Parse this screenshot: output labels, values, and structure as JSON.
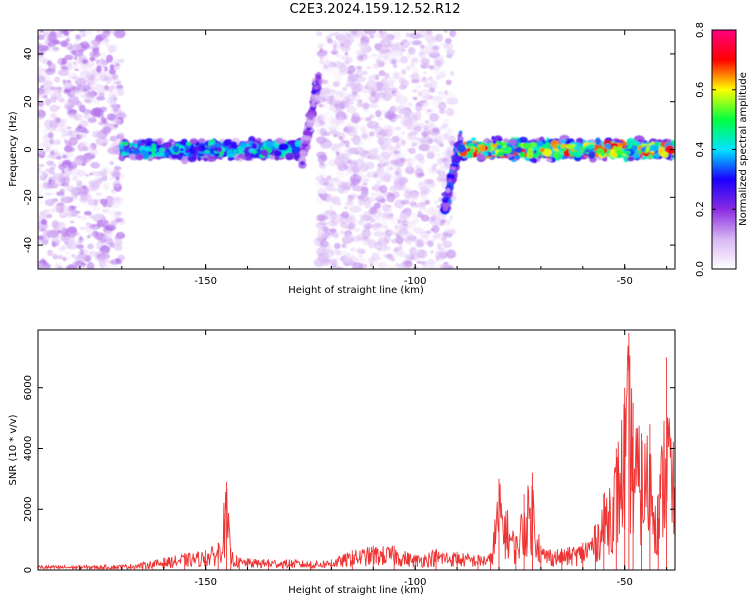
{
  "figure": {
    "title": "C2E3.2024.159.12.52.R12"
  },
  "chart_data": [
    {
      "type": "heatmap",
      "xlabel": "Height of straight line (km)",
      "ylabel": "Frequency (Hz)",
      "xlim": [
        -190,
        -38
      ],
      "ylim": [
        -50,
        50
      ],
      "xticks": [
        -150,
        -100,
        -50
      ],
      "yticks": [
        -40,
        -20,
        0,
        20,
        40
      ],
      "xtick_labels": [
        "-150",
        "-100",
        "-50"
      ],
      "ytick_labels": [
        "-40",
        "-20",
        "0",
        "20",
        "40"
      ],
      "colorbar": {
        "label": "Normalized spectral amplitude",
        "range": [
          0,
          0.8
        ],
        "ticks": [
          0,
          0.2,
          0.4,
          0.6,
          0.8
        ],
        "tick_labels": [
          "0.0",
          "0.2",
          "0.4",
          "0.6",
          "0.8"
        ],
        "colors": [
          "#ffffff",
          "#d8b6f4",
          "#8a2be2",
          "#1a00ff",
          "#00e5ff",
          "#00ff40",
          "#ffff00",
          "#ff0000",
          "#ff0080"
        ]
      },
      "regions": [
        {
          "x": [
            -190,
            -170
          ],
          "freq_center": 0,
          "spread_hz": 50,
          "level": 0.12,
          "kind": "broad noise"
        },
        {
          "x": [
            -170,
            -127
          ],
          "freq_center": 0,
          "spread_hz": 5,
          "level": 0.3,
          "kind": "narrow band"
        },
        {
          "x": [
            -127,
            -123
          ],
          "freq_center_start": -5,
          "freq_center_end": 30,
          "level": 0.15,
          "kind": "sweep"
        },
        {
          "x": [
            -123,
            -91
          ],
          "freq_center": 0,
          "spread_hz": 50,
          "level": 0.1,
          "kind": "broad noise"
        },
        {
          "x": [
            -93,
            -89
          ],
          "freq_center_start": -25,
          "freq_center_end": 5,
          "level": 0.2,
          "kind": "sweep"
        },
        {
          "x": [
            -89,
            -38
          ],
          "freq_center": 0,
          "spread_hz": 5,
          "level": 0.45,
          "kind": "narrow band"
        }
      ]
    },
    {
      "type": "line",
      "xlabel": "Height of straight line (km)",
      "ylabel": "SNR (10 * v/v)",
      "xlim": [
        -190,
        -38
      ],
      "ylim": [
        0,
        7900
      ],
      "xticks": [
        -150,
        -100,
        -50
      ],
      "yticks": [
        0,
        2000,
        4000,
        6000
      ],
      "xtick_labels": [
        "-150",
        "-100",
        "-50"
      ],
      "ytick_labels": [
        "0",
        "2000",
        "4000",
        "6000"
      ],
      "line_color": "#ee3333",
      "series": [
        {
          "x": [
            -190,
            -185,
            -180,
            -175,
            -170,
            -165,
            -160,
            -155,
            -150,
            -147,
            -145,
            -144,
            -142,
            -140,
            -135,
            -130,
            -125,
            -120,
            -115,
            -110,
            -105,
            -100,
            -95,
            -90,
            -85,
            -82,
            -80,
            -76,
            -74,
            -72,
            -70,
            -65,
            -60,
            -57,
            -55,
            -52,
            -50,
            -49,
            -48,
            -46,
            -44,
            -42,
            -40,
            -38
          ],
          "values": [
            150,
            150,
            150,
            160,
            170,
            250,
            400,
            550,
            650,
            900,
            2900,
            700,
            400,
            380,
            360,
            350,
            300,
            350,
            650,
            800,
            800,
            500,
            700,
            600,
            500,
            550,
            3000,
            1100,
            2500,
            3200,
            800,
            700,
            900,
            1500,
            2500,
            4000,
            6000,
            7800,
            5500,
            4500,
            4800,
            2500,
            7000,
            3500
          ]
        }
      ]
    }
  ]
}
